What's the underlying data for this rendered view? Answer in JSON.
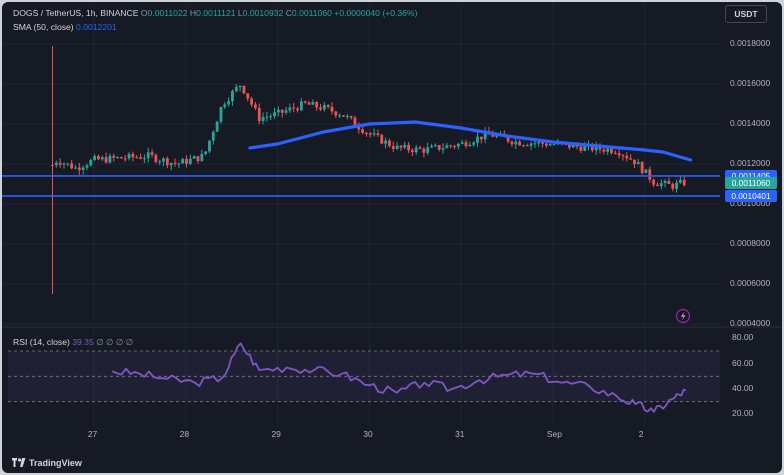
{
  "symbol_line": {
    "pair": "DOGS / TetherUS, 1h, BINANCE",
    "open_label": "O",
    "open": "0.0011022",
    "high_label": "H",
    "high": "0.0011121",
    "low_label": "L",
    "low": "0.0010932",
    "close_label": "C",
    "close": "0.0011060",
    "change": "+0.0000040 (+0.36%)"
  },
  "sma_line": {
    "label": "SMA (50, close)",
    "value": "0.0012201"
  },
  "rsi_line": {
    "label": "RSI (14, close)",
    "value": "39.35",
    "placeholders": "∅ ∅ ∅ ∅"
  },
  "currency_button": "USDT",
  "price_axis": [
    "0.0018000",
    "0.0016000",
    "0.0014000",
    "0.0012000",
    "0.0010000",
    "0.0008000",
    "0.0006000",
    "0.0004000"
  ],
  "price_tags": [
    {
      "value": "0.0011405",
      "color": "#2962ff"
    },
    {
      "value": "0.0011060",
      "color": "#26a69a"
    },
    {
      "value": "0.0010401",
      "color": "#2962ff"
    }
  ],
  "rsi_axis": [
    "80.00",
    "60.00",
    "40.00",
    "20.00"
  ],
  "time_axis": [
    "27",
    "28",
    "29",
    "30",
    "31",
    "Sep",
    "2"
  ],
  "brand": "TradingView",
  "icons": {
    "logo": "tradingview-logo-icon",
    "alert": "lightning-icon"
  },
  "colors": {
    "up": "#26a69a",
    "down": "#ef5350",
    "sma": "#2962ff",
    "rsi": "#7e57c2",
    "hline": "#2962ff",
    "background": "#161a25"
  },
  "chart_data": [
    {
      "type": "candlestick",
      "title": "DOGS / TetherUS, 1h, BINANCE",
      "x_labels": [
        "27",
        "28",
        "29",
        "30",
        "31",
        "Sep",
        "2"
      ],
      "ylim": [
        0.0004,
        0.00185
      ],
      "axis_ticks": [
        0.0018,
        0.0016,
        0.0014,
        0.0012,
        0.001,
        0.0008,
        0.0006,
        0.0004
      ],
      "horizontal_lines": [
        0.0011405,
        0.0010401
      ],
      "series": [
        {
          "name": "SMA (50, close)",
          "x": [
            28.7,
            29.0,
            29.5,
            30.0,
            30.5,
            31.0,
            31.5,
            32.0,
            32.5,
            33.0,
            33.2,
            33.5
          ],
          "values": [
            0.00128,
            0.0013,
            0.00136,
            0.0014,
            0.00141,
            0.00138,
            0.00134,
            0.00131,
            0.00129,
            0.00127,
            0.00126,
            0.00122
          ]
        },
        {
          "name": "price",
          "x": [
            26.5,
            26.6,
            26.8,
            27.0,
            27.3,
            27.6,
            27.9,
            28.2,
            28.4,
            28.6,
            28.8,
            29.0,
            29.3,
            29.5,
            29.7,
            30.0,
            30.3,
            30.6,
            31.0,
            31.3,
            31.6,
            32.0,
            32.4,
            32.7,
            32.9,
            33.1,
            33.3,
            33.45
          ],
          "values": [
            0.00117,
            0.00122,
            0.00118,
            0.00122,
            0.00123,
            0.00124,
            0.0012,
            0.00124,
            0.0015,
            0.0016,
            0.00143,
            0.00145,
            0.0015,
            0.00148,
            0.00145,
            0.00135,
            0.00128,
            0.00127,
            0.0013,
            0.00135,
            0.00131,
            0.0013,
            0.00128,
            0.00127,
            0.00121,
            0.00111,
            0.00109,
            0.00111
          ]
        }
      ]
    },
    {
      "type": "line",
      "title": "RSI (14, close)",
      "ylim": [
        10,
        85
      ],
      "axis_ticks": [
        80,
        60,
        40,
        20
      ],
      "band": [
        30,
        70
      ],
      "series": [
        {
          "name": "RSI (14, close)",
          "x": [
            27.2,
            27.5,
            27.8,
            28.1,
            28.4,
            28.6,
            28.8,
            29.1,
            29.4,
            29.7,
            30.0,
            30.3,
            30.6,
            30.9,
            31.2,
            31.5,
            31.8,
            32.1,
            32.4,
            32.7,
            32.9,
            33.1,
            33.3,
            33.45
          ],
          "values": [
            54,
            52,
            48,
            45,
            49,
            76,
            55,
            57,
            55,
            52,
            43,
            37,
            45,
            40,
            47,
            51,
            52,
            45,
            42,
            34,
            28,
            22,
            32,
            39
          ]
        }
      ]
    }
  ]
}
